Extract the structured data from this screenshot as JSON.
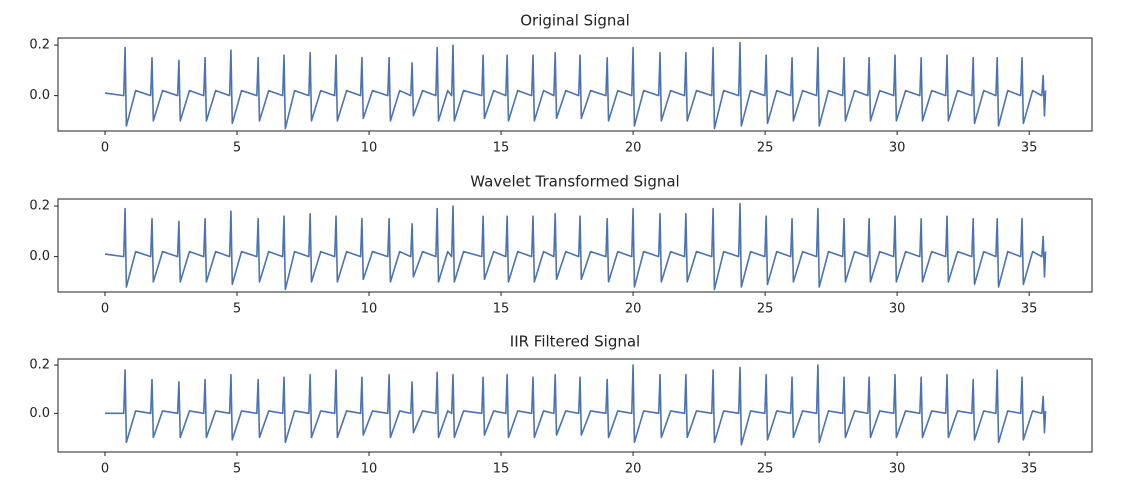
{
  "chart_data": [
    {
      "type": "line",
      "title": "Original Signal",
      "x": [
        0.0,
        0.71,
        0.76,
        0.81,
        1.16,
        1.73,
        1.78,
        1.83,
        2.18,
        2.75,
        2.8,
        2.85,
        3.2,
        3.74,
        3.79,
        3.84,
        4.19,
        4.72,
        4.77,
        4.82,
        5.17,
        5.75,
        5.8,
        5.85,
        6.2,
        6.73,
        6.78,
        6.83,
        7.18,
        7.72,
        7.77,
        7.82,
        8.17,
        8.7,
        8.75,
        8.8,
        9.15,
        9.68,
        9.73,
        9.78,
        10.13,
        10.71,
        10.76,
        10.81,
        11.16,
        11.58,
        11.63,
        11.68,
        12.03,
        12.53,
        12.58,
        12.63,
        12.98,
        13.13,
        13.18,
        13.23,
        13.58,
        14.27,
        14.32,
        14.37,
        14.72,
        15.18,
        15.23,
        15.28,
        15.63,
        16.16,
        16.21,
        16.26,
        16.61,
        17.0,
        17.05,
        17.1,
        17.45,
        17.94,
        17.99,
        18.04,
        18.39,
        18.97,
        19.02,
        19.07,
        19.42,
        19.95,
        20.0,
        20.05,
        20.4,
        20.97,
        21.02,
        21.07,
        21.42,
        21.95,
        22.0,
        22.05,
        22.4,
        22.98,
        23.03,
        23.08,
        23.43,
        24.0,
        24.05,
        24.1,
        24.45,
        24.99,
        25.04,
        25.09,
        25.44,
        25.97,
        26.02,
        26.07,
        26.42,
        26.95,
        27.0,
        27.05,
        27.4,
        27.94,
        27.99,
        28.04,
        28.39,
        28.89,
        28.94,
        28.99,
        29.34,
        29.87,
        29.92,
        29.97,
        30.32,
        30.86,
        30.91,
        30.96,
        31.31,
        31.84,
        31.89,
        31.94,
        32.29,
        32.83,
        32.88,
        32.93,
        33.28,
        33.74,
        33.79,
        33.84,
        34.19,
        34.68,
        34.73,
        34.78,
        35.13,
        35.48,
        35.53,
        35.58,
        35.62
      ],
      "series": [
        {
          "color": "#4c72b0",
          "values": [
            0.01,
            0,
            0.19,
            -0.12,
            0.02,
            0,
            0.15,
            -0.1,
            0.02,
            0,
            0.14,
            -0.1,
            0.02,
            0,
            0.15,
            -0.1,
            0.02,
            0,
            0.18,
            -0.11,
            0.02,
            0,
            0.15,
            -0.1,
            0.02,
            0,
            0.16,
            -0.13,
            0.02,
            0,
            0.17,
            -0.1,
            0.02,
            0,
            0.16,
            -0.1,
            0.02,
            0,
            0.15,
            -0.09,
            0.02,
            0,
            0.15,
            -0.1,
            0.02,
            0,
            0.13,
            -0.08,
            0.02,
            0,
            0.19,
            -0.1,
            0.02,
            0,
            0.2,
            -0.1,
            0.02,
            0,
            0.16,
            -0.09,
            0.02,
            0,
            0.16,
            -0.1,
            0.02,
            0,
            0.16,
            -0.1,
            0.02,
            0,
            0.17,
            -0.09,
            0.02,
            0,
            0.16,
            -0.09,
            0.02,
            0,
            0.15,
            -0.1,
            0.02,
            0,
            0.19,
            -0.12,
            0.02,
            0,
            0.17,
            -0.1,
            0.02,
            0,
            0.17,
            -0.1,
            0.02,
            0,
            0.19,
            -0.13,
            0.02,
            0,
            0.21,
            -0.12,
            0.02,
            0,
            0.16,
            -0.11,
            0.02,
            0,
            0.15,
            -0.1,
            0.02,
            0,
            0.19,
            -0.12,
            0.02,
            0,
            0.15,
            -0.1,
            0.02,
            0,
            0.15,
            -0.1,
            0.02,
            0,
            0.16,
            -0.1,
            0.02,
            0,
            0.15,
            -0.1,
            0.02,
            0,
            0.16,
            -0.1,
            0.02,
            0,
            0.15,
            -0.11,
            0.02,
            0,
            0.15,
            -0.12,
            0.02,
            0,
            0.15,
            -0.11,
            0.02,
            0,
            0.08,
            -0.08,
            0.02
          ]
        }
      ],
      "xlim": [
        -1.78,
        37.38
      ],
      "ylim": [
        -0.14,
        0.228
      ],
      "xticks": [
        0,
        5,
        10,
        15,
        20,
        25,
        30,
        35
      ],
      "yticks": [
        {
          "value": 0,
          "label": "0.0"
        },
        0.2
      ]
    },
    {
      "type": "line",
      "title": "Wavelet Transformed Signal",
      "x": [
        0.0,
        0.71,
        0.76,
        0.81,
        1.16,
        1.73,
        1.78,
        1.83,
        2.18,
        2.75,
        2.8,
        2.85,
        3.2,
        3.74,
        3.79,
        3.84,
        4.19,
        4.72,
        4.77,
        4.82,
        5.17,
        5.75,
        5.8,
        5.85,
        6.2,
        6.73,
        6.78,
        6.83,
        7.18,
        7.72,
        7.77,
        7.82,
        8.17,
        8.7,
        8.75,
        8.8,
        9.15,
        9.68,
        9.73,
        9.78,
        10.13,
        10.71,
        10.76,
        10.81,
        11.16,
        11.58,
        11.63,
        11.68,
        12.03,
        12.53,
        12.58,
        12.63,
        12.98,
        13.13,
        13.18,
        13.23,
        13.58,
        14.27,
        14.32,
        14.37,
        14.72,
        15.18,
        15.23,
        15.28,
        15.63,
        16.16,
        16.21,
        16.26,
        16.61,
        17.0,
        17.05,
        17.1,
        17.45,
        17.94,
        17.99,
        18.04,
        18.39,
        18.97,
        19.02,
        19.07,
        19.42,
        19.95,
        20.0,
        20.05,
        20.4,
        20.97,
        21.02,
        21.07,
        21.42,
        21.95,
        22.0,
        22.05,
        22.4,
        22.98,
        23.03,
        23.08,
        23.43,
        24.0,
        24.05,
        24.1,
        24.45,
        24.99,
        25.04,
        25.09,
        25.44,
        25.97,
        26.02,
        26.07,
        26.42,
        26.95,
        27.0,
        27.05,
        27.4,
        27.94,
        27.99,
        28.04,
        28.39,
        28.89,
        28.94,
        28.99,
        29.34,
        29.87,
        29.92,
        29.97,
        30.32,
        30.86,
        30.91,
        30.96,
        31.31,
        31.84,
        31.89,
        31.94,
        32.29,
        32.83,
        32.88,
        32.93,
        33.28,
        33.74,
        33.79,
        33.84,
        34.19,
        34.68,
        34.73,
        34.78,
        35.13,
        35.48,
        35.53,
        35.58,
        35.62
      ],
      "series": [
        {
          "color": "#4c72b0",
          "values": [
            0.01,
            0,
            0.19,
            -0.12,
            0.02,
            0,
            0.15,
            -0.1,
            0.02,
            0,
            0.14,
            -0.1,
            0.02,
            0,
            0.15,
            -0.1,
            0.02,
            0,
            0.18,
            -0.11,
            0.02,
            0,
            0.15,
            -0.1,
            0.02,
            0,
            0.16,
            -0.13,
            0.02,
            0,
            0.17,
            -0.1,
            0.02,
            0,
            0.16,
            -0.1,
            0.02,
            0,
            0.15,
            -0.09,
            0.02,
            0,
            0.15,
            -0.1,
            0.02,
            0,
            0.13,
            -0.08,
            0.02,
            0,
            0.19,
            -0.1,
            0.02,
            0,
            0.2,
            -0.1,
            0.02,
            0,
            0.16,
            -0.09,
            0.02,
            0,
            0.16,
            -0.1,
            0.02,
            0,
            0.16,
            -0.1,
            0.02,
            0,
            0.17,
            -0.09,
            0.02,
            0,
            0.16,
            -0.09,
            0.02,
            0,
            0.15,
            -0.1,
            0.02,
            0,
            0.19,
            -0.12,
            0.02,
            0,
            0.17,
            -0.1,
            0.02,
            0,
            0.17,
            -0.1,
            0.02,
            0,
            0.19,
            -0.13,
            0.02,
            0,
            0.21,
            -0.12,
            0.02,
            0,
            0.16,
            -0.11,
            0.02,
            0,
            0.15,
            -0.1,
            0.02,
            0,
            0.19,
            -0.12,
            0.02,
            0,
            0.15,
            -0.1,
            0.02,
            0,
            0.15,
            -0.1,
            0.02,
            0,
            0.16,
            -0.1,
            0.02,
            0,
            0.15,
            -0.1,
            0.02,
            0,
            0.16,
            -0.1,
            0.02,
            0,
            0.15,
            -0.11,
            0.02,
            0,
            0.15,
            -0.12,
            0.02,
            0,
            0.15,
            -0.11,
            0.02,
            0,
            0.08,
            -0.08,
            0.02
          ]
        }
      ],
      "xlim": [
        -1.78,
        37.38
      ],
      "ylim": [
        -0.14,
        0.228
      ],
      "xticks": [
        0,
        5,
        10,
        15,
        20,
        25,
        30,
        35
      ],
      "yticks": [
        {
          "value": 0,
          "label": "0.0"
        },
        0.2
      ]
    },
    {
      "type": "line",
      "title": "IIR Filtered Signal",
      "x": [
        0.0,
        0.71,
        0.76,
        0.81,
        1.16,
        1.73,
        1.78,
        1.83,
        2.18,
        2.75,
        2.8,
        2.85,
        3.2,
        3.74,
        3.79,
        3.84,
        4.19,
        4.72,
        4.77,
        4.82,
        5.17,
        5.75,
        5.8,
        5.85,
        6.2,
        6.73,
        6.78,
        6.83,
        7.18,
        7.72,
        7.77,
        7.82,
        8.17,
        8.7,
        8.75,
        8.8,
        9.15,
        9.68,
        9.73,
        9.78,
        10.13,
        10.71,
        10.76,
        10.81,
        11.16,
        11.58,
        11.63,
        11.68,
        12.03,
        12.53,
        12.58,
        12.63,
        12.98,
        13.13,
        13.18,
        13.23,
        13.58,
        14.27,
        14.32,
        14.37,
        14.72,
        15.18,
        15.23,
        15.28,
        15.63,
        16.16,
        16.21,
        16.26,
        16.61,
        17.0,
        17.05,
        17.1,
        17.45,
        17.94,
        17.99,
        18.04,
        18.39,
        18.97,
        19.02,
        19.07,
        19.42,
        19.95,
        20.0,
        20.05,
        20.4,
        20.97,
        21.02,
        21.07,
        21.42,
        21.95,
        22.0,
        22.05,
        22.4,
        22.98,
        23.03,
        23.08,
        23.43,
        24.0,
        24.05,
        24.1,
        24.45,
        24.99,
        25.04,
        25.09,
        25.44,
        25.97,
        26.02,
        26.07,
        26.42,
        26.95,
        27.0,
        27.05,
        27.4,
        27.94,
        27.99,
        28.04,
        28.39,
        28.89,
        28.94,
        28.99,
        29.34,
        29.87,
        29.92,
        29.97,
        30.32,
        30.86,
        30.91,
        30.96,
        31.31,
        31.84,
        31.89,
        31.94,
        32.29,
        32.83,
        32.88,
        32.93,
        33.28,
        33.74,
        33.79,
        33.84,
        34.19,
        34.68,
        34.73,
        34.78,
        35.13,
        35.48,
        35.53,
        35.58,
        35.62
      ],
      "series": [
        {
          "color": "#4c72b0",
          "values": [
            0.0,
            0,
            0.18,
            -0.12,
            0.01,
            0,
            0.14,
            -0.1,
            0.01,
            0,
            0.13,
            -0.1,
            0.01,
            0,
            0.14,
            -0.1,
            0.01,
            0,
            0.16,
            -0.11,
            0.01,
            0,
            0.14,
            -0.1,
            0.01,
            0,
            0.15,
            -0.12,
            0.01,
            0,
            0.16,
            -0.1,
            0.01,
            0,
            0.18,
            -0.1,
            0.01,
            0,
            0.15,
            -0.09,
            0.01,
            0,
            0.16,
            -0.1,
            0.01,
            0,
            0.13,
            -0.08,
            0.01,
            0,
            0.17,
            -0.1,
            0.01,
            0,
            0.16,
            -0.1,
            0.01,
            0,
            0.15,
            -0.09,
            0.01,
            0,
            0.16,
            -0.1,
            0.01,
            0,
            0.15,
            -0.1,
            0.01,
            0,
            0.16,
            -0.09,
            0.01,
            0,
            0.15,
            -0.09,
            0.01,
            0,
            0.14,
            -0.1,
            0.01,
            0,
            0.2,
            -0.12,
            0.01,
            0,
            0.16,
            -0.1,
            0.01,
            0,
            0.16,
            -0.1,
            0.01,
            0,
            0.18,
            -0.12,
            0.01,
            0,
            0.19,
            -0.13,
            0.01,
            0,
            0.16,
            -0.11,
            0.01,
            0,
            0.15,
            -0.1,
            0.01,
            0,
            0.2,
            -0.12,
            0.01,
            0,
            0.15,
            -0.1,
            0.01,
            0,
            0.15,
            -0.1,
            0.01,
            0,
            0.16,
            -0.1,
            0.01,
            0,
            0.15,
            -0.1,
            0.01,
            0,
            0.16,
            -0.1,
            0.01,
            0,
            0.14,
            -0.11,
            0.01,
            0,
            0.18,
            -0.12,
            0.01,
            0,
            0.15,
            -0.11,
            0.01,
            0,
            0.07,
            -0.08,
            0.01
          ]
        }
      ],
      "xlim": [
        -1.78,
        37.38
      ],
      "ylim": [
        -0.16,
        0.225
      ],
      "xticks": [
        0,
        5,
        10,
        15,
        20,
        25,
        30,
        35
      ],
      "yticks": [
        {
          "value": 0,
          "label": "0.0"
        },
        0.2
      ]
    }
  ]
}
